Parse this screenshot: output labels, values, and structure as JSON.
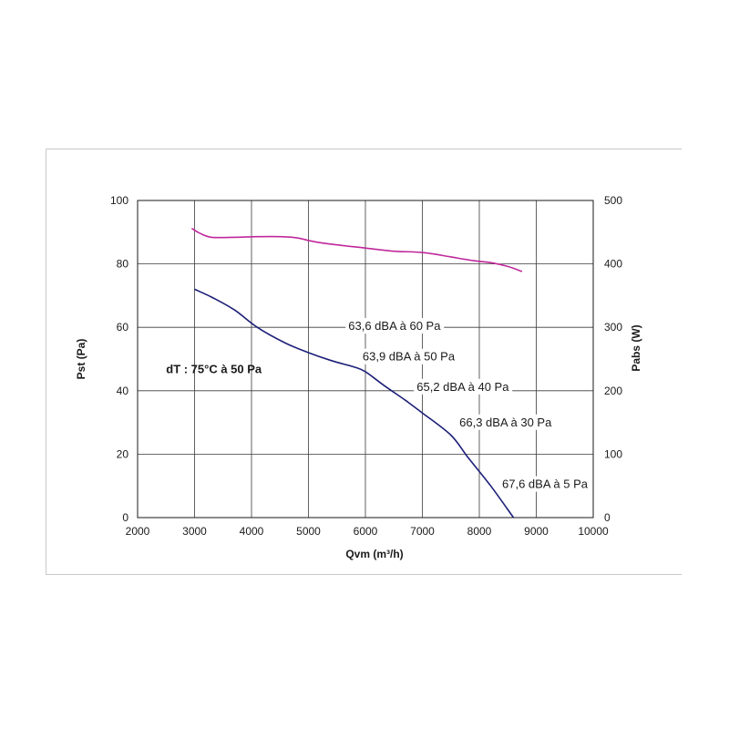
{
  "chart_data": {
    "type": "line",
    "xlabel": "Qvm (m³/h)",
    "ylabel_left": "Pst  (Pa)",
    "ylabel_right": "Pabs (W)",
    "xlim": [
      2000,
      10000
    ],
    "ylim_left": [
      0,
      100
    ],
    "ylim_right": [
      0,
      500
    ],
    "x_ticks": [
      "2000",
      "3000",
      "4000",
      "5000",
      "6000",
      "7000",
      "8000",
      "9000",
      "10000"
    ],
    "y_left_ticks": [
      "0",
      "20",
      "40",
      "60",
      "80",
      "100"
    ],
    "y_right_ticks": [
      "0",
      "100",
      "200",
      "300",
      "400",
      "500"
    ],
    "grid": true,
    "series": [
      {
        "axis": "left",
        "color": "#1c1f78",
        "points": [
          [
            3000,
            72
          ],
          [
            3300,
            69.5
          ],
          [
            3700,
            65.5
          ],
          [
            4100,
            60
          ],
          [
            4600,
            55
          ],
          [
            5000,
            52
          ],
          [
            5400,
            49.5
          ],
          [
            5800,
            47.5
          ],
          [
            6000,
            46
          ],
          [
            6300,
            42
          ],
          [
            6700,
            37
          ],
          [
            7000,
            33
          ],
          [
            7500,
            26
          ],
          [
            7800,
            19
          ],
          [
            8200,
            10
          ],
          [
            8600,
            0
          ]
        ]
      },
      {
        "axis": "right",
        "color": "#c0289c",
        "points": [
          [
            2950,
            456
          ],
          [
            3100,
            448
          ],
          [
            3300,
            442
          ],
          [
            3700,
            442
          ],
          [
            4100,
            443
          ],
          [
            4500,
            443
          ],
          [
            4800,
            441
          ],
          [
            5100,
            435
          ],
          [
            5500,
            430
          ],
          [
            6000,
            425
          ],
          [
            6500,
            420
          ],
          [
            7000,
            418
          ],
          [
            7500,
            411
          ],
          [
            7900,
            405
          ],
          [
            8200,
            402
          ],
          [
            8500,
            396
          ],
          [
            8750,
            388
          ]
        ]
      }
    ],
    "annotations": [
      {
        "text": "63,6 dBA à 60 Pa",
        "x": 5700,
        "y": 59.2
      },
      {
        "text": "63,9 dBA à 50 Pa",
        "x": 5950,
        "y": 49.5
      },
      {
        "text": "65,2 dBA à 40 Pa",
        "x": 6900,
        "y": 40
      },
      {
        "text": "66,3 dBA à 30 Pa",
        "x": 7650,
        "y": 28.8
      },
      {
        "text": "67,6 dBA à 5 Pa",
        "x": 8400,
        "y": 9.3
      }
    ],
    "note": {
      "text": "dT : 75°C à 50 Pa",
      "x": 2500,
      "y": 45.5
    }
  }
}
